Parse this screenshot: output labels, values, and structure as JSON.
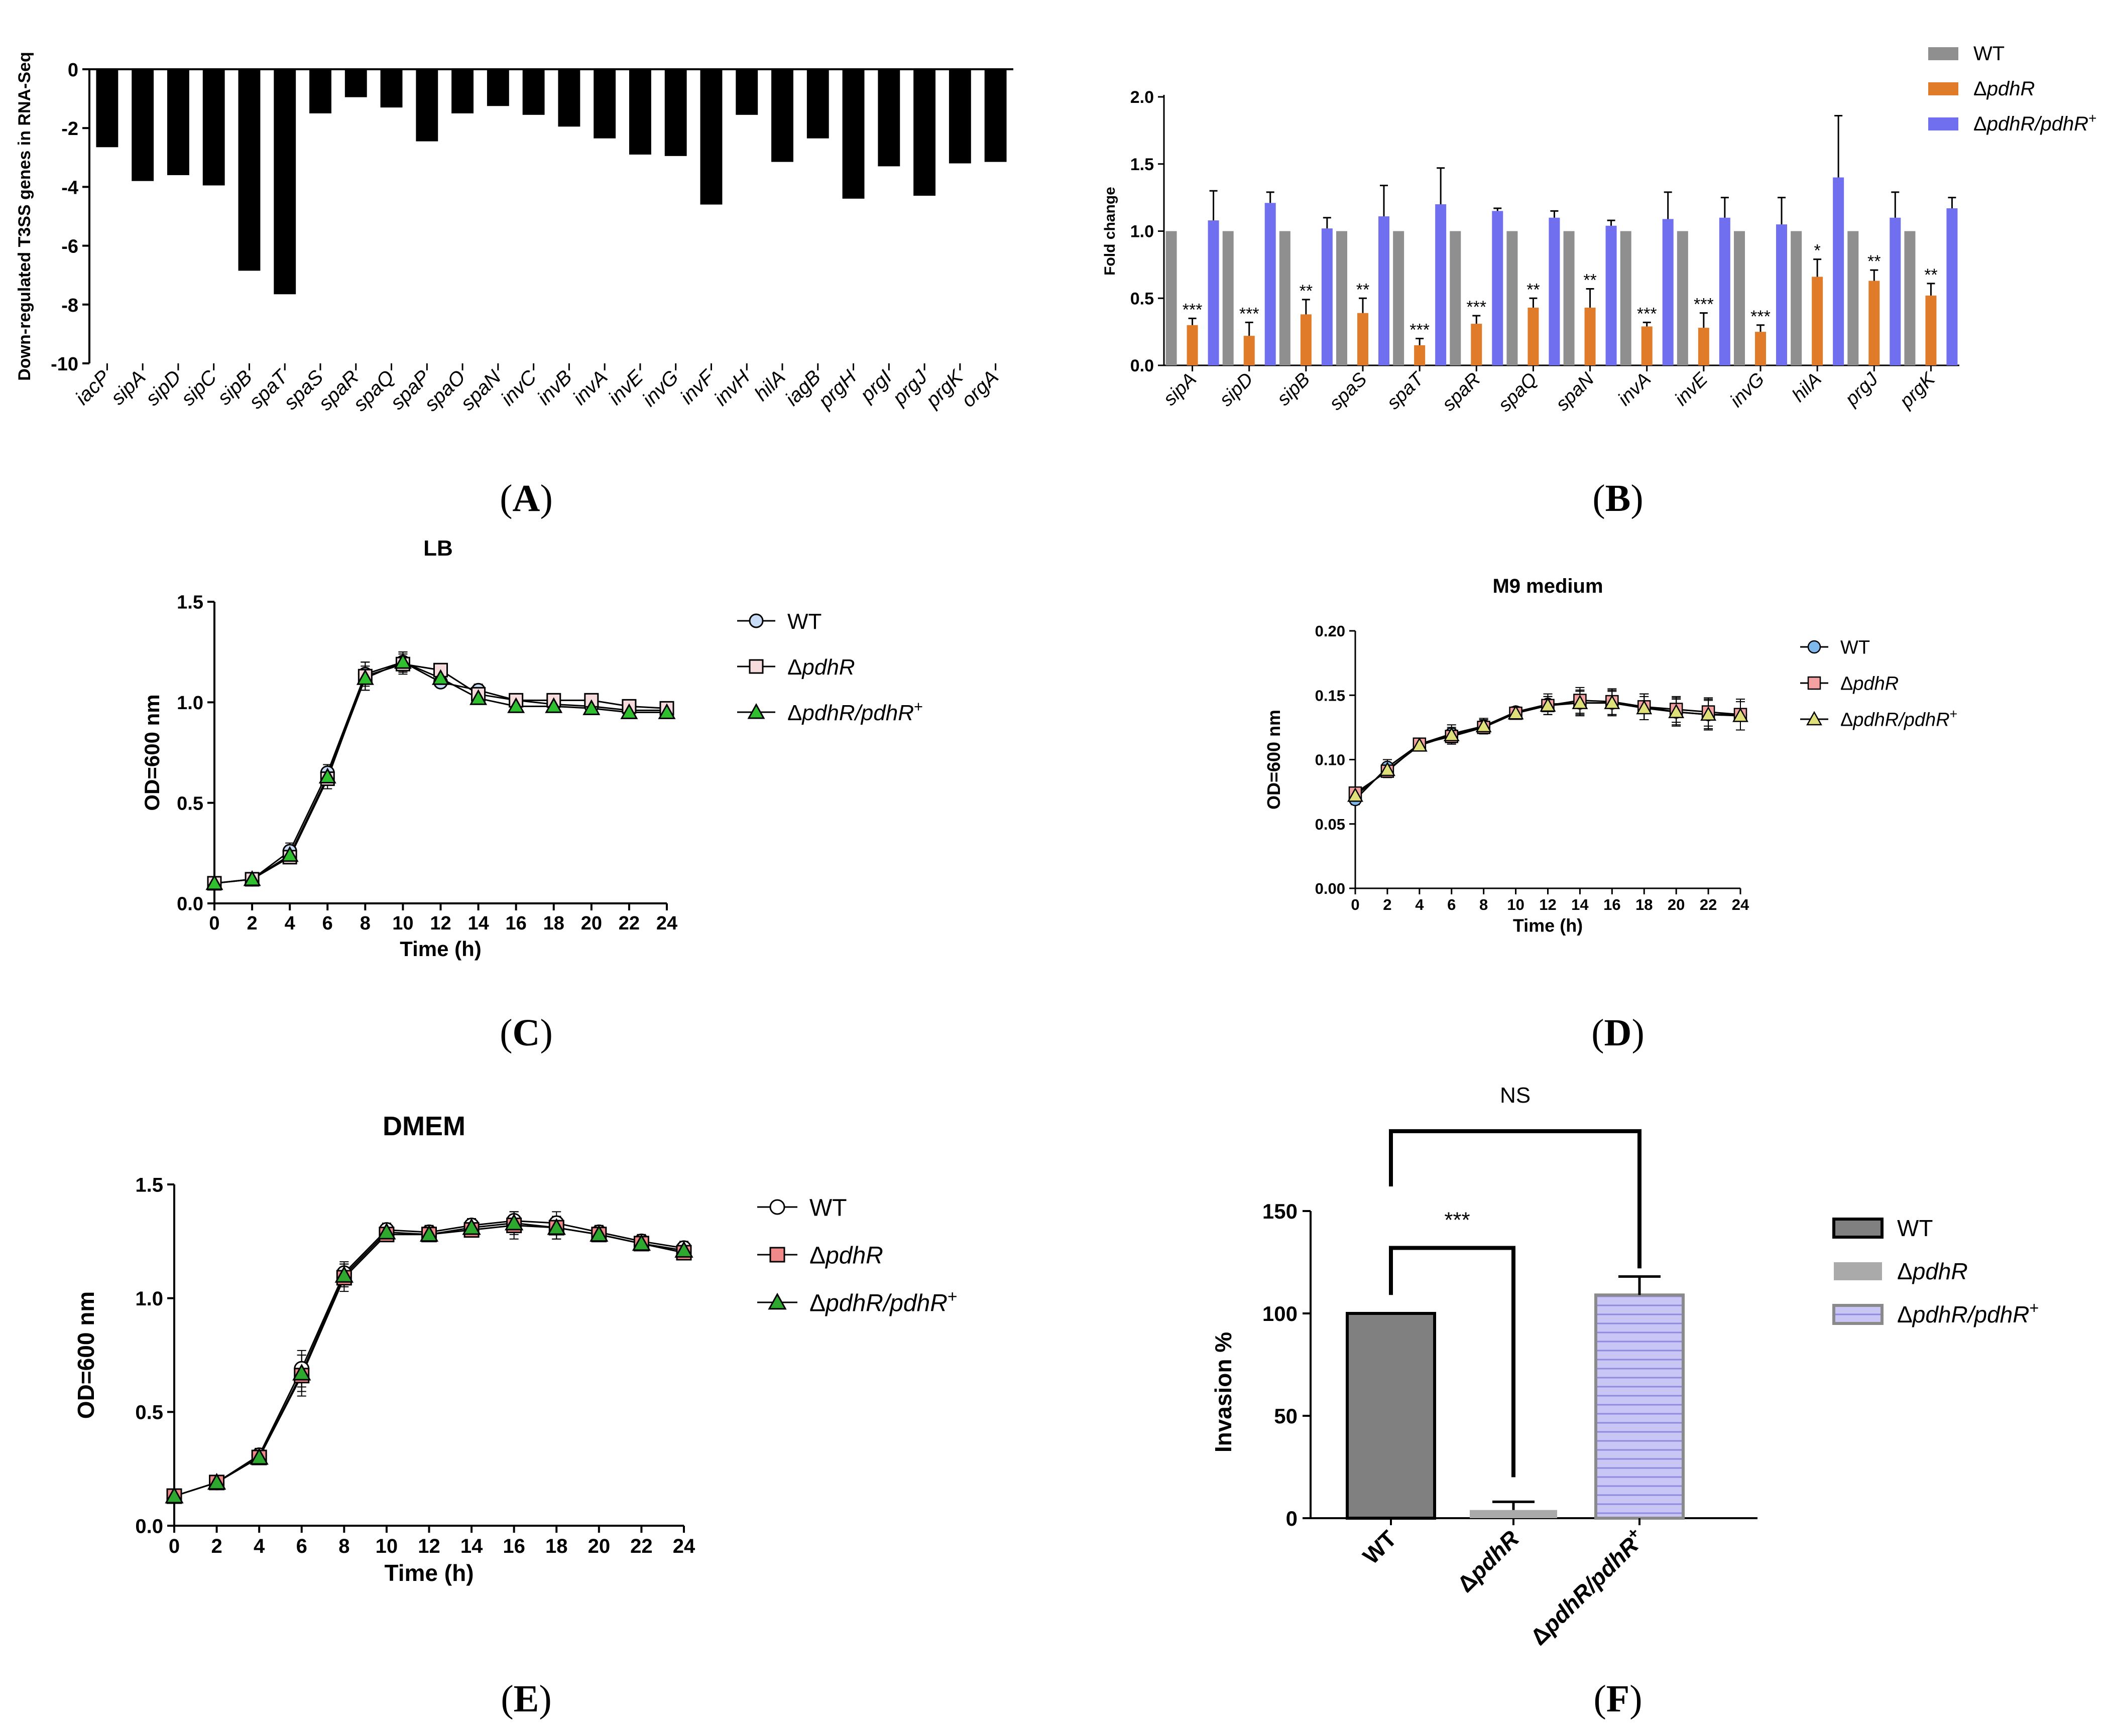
{
  "panels": {
    "A": "A",
    "B": "B",
    "C": "C",
    "D": "D",
    "E": "E",
    "F": "F"
  },
  "chart_data": [
    {
      "panel": "A",
      "type": "bar",
      "title": "",
      "xlabel": "",
      "ylabel": "Down-regulated T3SS genes in RNA-Seq",
      "ylim": [
        -10,
        0
      ],
      "yticks": [
        "0",
        "-2",
        "-4",
        "-6",
        "-8",
        "-10"
      ],
      "categories": [
        "iacP",
        "sipA",
        "sipD",
        "sipC",
        "sipB",
        "spaT",
        "spaS",
        "spaR",
        "spaQ",
        "spaP",
        "spaO",
        "spaN",
        "invC",
        "invB",
        "invA",
        "invE",
        "invG",
        "invF",
        "invH",
        "hilA",
        "iagB",
        "prgH",
        "prgI",
        "prgJ",
        "prgK",
        "orgA"
      ],
      "values": [
        -2.65,
        -3.8,
        -3.6,
        -3.95,
        -6.85,
        -7.65,
        -1.5,
        -0.95,
        -1.3,
        -2.45,
        -1.5,
        -1.25,
        -1.55,
        -1.95,
        -2.35,
        -2.9,
        -2.95,
        -4.6,
        -1.55,
        -3.15,
        -2.35,
        -4.4,
        -3.3,
        -4.3,
        -3.2,
        -3.15
      ],
      "colors": {
        "bar": "#000000"
      }
    },
    {
      "panel": "B",
      "type": "bar",
      "title": "",
      "xlabel": "",
      "ylabel": "Fold change",
      "ylim": [
        0,
        2.0
      ],
      "yticks": [
        "0.0",
        "0.5",
        "1.0",
        "1.5",
        "2.0"
      ],
      "categories": [
        "sipA",
        "sipD",
        "sipB",
        "spaS",
        "spaT",
        "spaR",
        "spaQ",
        "spaN",
        "invA",
        "invE",
        "invG",
        "hilA",
        "prgJ",
        "prgK"
      ],
      "series": [
        {
          "name": "WT",
          "color": "#8f8f8f",
          "values": [
            1.0,
            1.0,
            1.0,
            1.0,
            1.0,
            1.0,
            1.0,
            1.0,
            1.0,
            1.0,
            1.0,
            1.0,
            1.0,
            1.0
          ],
          "errors": [
            0,
            0,
            0,
            0,
            0,
            0,
            0,
            0,
            0,
            0,
            0,
            0,
            0,
            0
          ]
        },
        {
          "name": "ΔpdhR",
          "color": "#e07b2a",
          "values": [
            0.3,
            0.22,
            0.38,
            0.39,
            0.15,
            0.31,
            0.43,
            0.43,
            0.29,
            0.28,
            0.25,
            0.66,
            0.63,
            0.52
          ],
          "errors": [
            0.05,
            0.1,
            0.11,
            0.11,
            0.05,
            0.06,
            0.07,
            0.14,
            0.03,
            0.11,
            0.05,
            0.13,
            0.08,
            0.09
          ]
        },
        {
          "name": "ΔpdhR/pdhR+",
          "color": "#6f6ff0",
          "values": [
            1.08,
            1.21,
            1.02,
            1.11,
            1.2,
            1.15,
            1.1,
            1.04,
            1.09,
            1.1,
            1.05,
            1.4,
            1.1,
            1.17
          ],
          "errors": [
            0.22,
            0.08,
            0.08,
            0.23,
            0.27,
            0.02,
            0.05,
            0.04,
            0.2,
            0.15,
            0.2,
            0.46,
            0.19,
            0.08
          ]
        }
      ],
      "significance": [
        "***",
        "***",
        "**",
        "**",
        "***",
        "***",
        "**",
        "**",
        "***",
        "***",
        "***",
        "*",
        "**",
        "**"
      ],
      "legend": [
        "WT",
        "ΔpdhR",
        "ΔpdhR/pdhR+"
      ]
    },
    {
      "panel": "C",
      "type": "line",
      "title": "LB",
      "xlabel": "Time (h)",
      "ylabel": "OD=600 nm",
      "x": [
        0,
        2,
        4,
        6,
        8,
        10,
        12,
        14,
        16,
        18,
        20,
        22,
        24
      ],
      "xticks": [
        "0",
        "2",
        "4",
        "6",
        "8",
        "10",
        "12",
        "14",
        "16",
        "18",
        "20",
        "22",
        "24"
      ],
      "ylim": [
        0,
        1.5
      ],
      "yticks": [
        "0.0",
        "0.5",
        "1.0",
        "1.5"
      ],
      "series": [
        {
          "name": "WT",
          "marker": "circle",
          "fill": "#c9dcf5",
          "values": [
            0.1,
            0.12,
            0.26,
            0.65,
            1.14,
            1.2,
            1.1,
            1.06,
            1.01,
            0.99,
            0.98,
            0.96,
            0.96
          ],
          "errors": [
            0.02,
            0.02,
            0.04,
            0.04,
            0.06,
            0.05,
            0.02,
            0.03,
            0.02,
            0.02,
            0.02,
            0.03,
            0.02
          ]
        },
        {
          "name": "ΔpdhR",
          "marker": "square",
          "fill": "#f6dcdc",
          "values": [
            0.1,
            0.12,
            0.23,
            0.62,
            1.13,
            1.19,
            1.16,
            1.04,
            1.01,
            1.01,
            1.01,
            0.98,
            0.97
          ],
          "errors": [
            0.02,
            0.02,
            0.03,
            0.05,
            0.07,
            0.05,
            0.02,
            0.02,
            0.02,
            0.02,
            0.02,
            0.03,
            0.02
          ]
        },
        {
          "name": "ΔpdhR/pdhR+",
          "marker": "triangle",
          "fill": "#2fbf2f",
          "values": [
            0.1,
            0.12,
            0.24,
            0.63,
            1.12,
            1.2,
            1.12,
            1.02,
            0.98,
            0.98,
            0.97,
            0.95,
            0.95
          ],
          "errors": [
            0.02,
            0.02,
            0.03,
            0.04,
            0.06,
            0.05,
            0.02,
            0.02,
            0.02,
            0.02,
            0.02,
            0.03,
            0.02
          ]
        }
      ],
      "legend": [
        "WT",
        "ΔpdhR",
        "ΔpdhR/pdhR+"
      ]
    },
    {
      "panel": "D",
      "type": "line",
      "title": "M9 medium",
      "xlabel": "Time (h)",
      "ylabel": "OD=600 nm",
      "x": [
        0,
        2,
        4,
        6,
        8,
        10,
        12,
        14,
        16,
        18,
        20,
        22,
        24
      ],
      "xticks": [
        "0",
        "2",
        "4",
        "6",
        "8",
        "10",
        "12",
        "14",
        "16",
        "18",
        "20",
        "22",
        "24"
      ],
      "ylim": [
        0,
        0.2
      ],
      "yticks": [
        "0.00",
        "0.05",
        "0.10",
        "0.15",
        "0.20"
      ],
      "series": [
        {
          "name": "WT",
          "marker": "circle",
          "fill": "#7fb8ec",
          "values": [
            0.069,
            0.094,
            0.112,
            0.12,
            0.126,
            0.137,
            0.143,
            0.144,
            0.144,
            0.141,
            0.137,
            0.135,
            0.135
          ],
          "errors": [
            0.004,
            0.006,
            0.003,
            0.007,
            0.006,
            0.004,
            0.008,
            0.01,
            0.01,
            0.01,
            0.011,
            0.012,
            0.012
          ]
        },
        {
          "name": "ΔpdhR",
          "marker": "square",
          "fill": "#f3a1a1",
          "values": [
            0.074,
            0.091,
            0.112,
            0.118,
            0.125,
            0.136,
            0.142,
            0.146,
            0.145,
            0.141,
            0.139,
            0.137,
            0.135
          ],
          "errors": [
            0.004,
            0.005,
            0.003,
            0.006,
            0.005,
            0.004,
            0.007,
            0.01,
            0.01,
            0.01,
            0.01,
            0.011,
            0.012
          ]
        },
        {
          "name": "ΔpdhR/pdhR+",
          "marker": "triangle",
          "fill": "#dfe07a",
          "values": [
            0.072,
            0.092,
            0.111,
            0.119,
            0.126,
            0.136,
            0.142,
            0.144,
            0.144,
            0.14,
            0.137,
            0.135,
            0.134
          ],
          "errors": [
            0.004,
            0.005,
            0.003,
            0.006,
            0.005,
            0.004,
            0.007,
            0.009,
            0.009,
            0.009,
            0.01,
            0.011,
            0.011
          ]
        }
      ],
      "legend": [
        "WT",
        "ΔpdhR",
        "ΔpdhR/pdhR+"
      ]
    },
    {
      "panel": "E",
      "type": "line",
      "title": "DMEM",
      "xlabel": "Time (h)",
      "ylabel": "OD=600 nm",
      "x": [
        0,
        2,
        4,
        6,
        8,
        10,
        12,
        14,
        16,
        18,
        20,
        22,
        24
      ],
      "xticks": [
        "0",
        "2",
        "4",
        "6",
        "8",
        "10",
        "12",
        "14",
        "16",
        "18",
        "20",
        "22",
        "24"
      ],
      "ylim": [
        0,
        1.5
      ],
      "yticks": [
        "0.0",
        "0.5",
        "1.0",
        "1.5"
      ],
      "series": [
        {
          "name": "WT",
          "marker": "circle",
          "fill": "#ffffff",
          "values": [
            0.13,
            0.19,
            0.31,
            0.69,
            1.11,
            1.3,
            1.29,
            1.32,
            1.34,
            1.33,
            1.29,
            1.25,
            1.22
          ],
          "errors": [
            0.02,
            0.02,
            0.03,
            0.08,
            0.05,
            0.03,
            0.03,
            0.03,
            0.04,
            0.05,
            0.03,
            0.03,
            0.03
          ]
        },
        {
          "name": "ΔpdhR",
          "marker": "square",
          "fill": "#f08a8a",
          "values": [
            0.13,
            0.19,
            0.3,
            0.66,
            1.09,
            1.28,
            1.28,
            1.3,
            1.32,
            1.31,
            1.28,
            1.24,
            1.2
          ],
          "errors": [
            0.02,
            0.02,
            0.03,
            0.09,
            0.06,
            0.03,
            0.03,
            0.03,
            0.06,
            0.05,
            0.03,
            0.03,
            0.03
          ]
        },
        {
          "name": "ΔpdhR/pdhR+",
          "marker": "triangle",
          "fill": "#2ea82e",
          "values": [
            0.13,
            0.19,
            0.3,
            0.67,
            1.1,
            1.29,
            1.28,
            1.31,
            1.33,
            1.31,
            1.28,
            1.24,
            1.21
          ],
          "errors": [
            0.02,
            0.02,
            0.03,
            0.08,
            0.05,
            0.03,
            0.03,
            0.03,
            0.05,
            0.05,
            0.03,
            0.03,
            0.03
          ]
        }
      ],
      "legend": [
        "WT",
        "ΔpdhR",
        "ΔpdhR/pdhR+"
      ]
    },
    {
      "panel": "F",
      "type": "bar",
      "title": "",
      "xlabel": "",
      "ylabel": "Invasion %",
      "ylim": [
        0,
        150
      ],
      "yticks": [
        "0",
        "50",
        "100",
        "150"
      ],
      "categories": [
        "WT",
        "ΔpdhR",
        "ΔpdhR/pdhR+"
      ],
      "values": [
        100,
        4,
        109
      ],
      "errors": [
        0,
        4,
        9
      ],
      "colors": [
        "#808080",
        "#aaaaaa",
        "#b9b6f0"
      ],
      "significance": [
        {
          "label": "***",
          "between": [
            "WT",
            "ΔpdhR"
          ]
        },
        {
          "label": "NS",
          "between": [
            "WT",
            "ΔpdhR/pdhR+"
          ]
        }
      ],
      "legend": [
        "WT",
        "ΔpdhR",
        "ΔpdhR/pdhR+"
      ]
    }
  ]
}
